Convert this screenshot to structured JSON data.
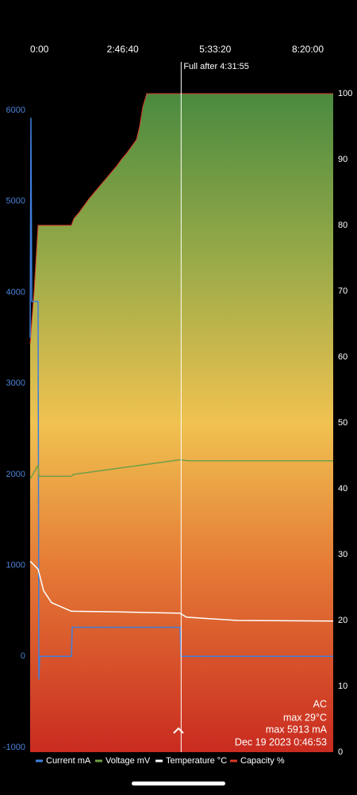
{
  "chart_data": {
    "type": "line",
    "xlim": [
      0,
      32743
    ],
    "xticks": [
      {
        "value": 0,
        "label": "0:00"
      },
      {
        "value": 10000,
        "label": "2:46:40"
      },
      {
        "value": 20000,
        "label": "5:33:20"
      },
      {
        "value": 30000,
        "label": "8:20:00"
      }
    ],
    "ylim": [
      -1052,
      6183
    ],
    "yticks": [
      -1000,
      0,
      1000,
      2000,
      3000,
      4000,
      5000,
      6000
    ],
    "y2lim": [
      0,
      100
    ],
    "y2ticks": [
      0,
      10,
      20,
      30,
      40,
      50,
      60,
      70,
      80,
      90,
      100
    ],
    "annotation": {
      "text": "Full after 4:31:55",
      "x": 16315
    },
    "info": [
      "AC",
      "max 29°C",
      "max 5913 mA",
      "Dec 19 2023 0:46:53"
    ],
    "series": [
      {
        "name": "Current mA",
        "color": "#3f7fdc",
        "x": [
          0,
          86,
          171,
          857,
          943,
          1029,
          4457,
          4543,
          16200,
          16286,
          32743
        ],
        "values": [
          3500,
          5913,
          3900,
          3900,
          -250,
          0,
          0,
          320,
          320,
          0,
          0
        ]
      },
      {
        "name": "Voltage mV",
        "color": "#6f9f45",
        "x": [
          0,
          857,
          943,
          4457,
          4714,
          16200,
          17000,
          32743
        ],
        "values": [
          1950,
          2100,
          1980,
          1980,
          2000,
          2160,
          2150,
          2150
        ]
      },
      {
        "name": "Temperature °C",
        "color": "#ffffff",
        "axis": "y2",
        "x": [
          0,
          857,
          1457,
          2314,
          4457,
          9600,
          16200,
          16886,
          22457,
          32743
        ],
        "values": [
          29,
          27.8,
          24.5,
          22.7,
          21.4,
          21.3,
          21.1,
          20.5,
          20,
          19.9
        ]
      },
      {
        "name": "Capacity %",
        "color": "#d93a26",
        "axis": "y2",
        "area": true,
        "x": [
          0,
          430,
          857,
          4457,
          4714,
          5314,
          5829,
          6343,
          6943,
          7543,
          8143,
          8743,
          9343,
          9857,
          10457,
          10971,
          11486,
          11829,
          12171,
          12600,
          32743
        ],
        "values": [
          62,
          70,
          80,
          80,
          81,
          82,
          83,
          84,
          85,
          86,
          87,
          88,
          89,
          90,
          91,
          92,
          93,
          95,
          98,
          100,
          100
        ]
      }
    ]
  }
}
